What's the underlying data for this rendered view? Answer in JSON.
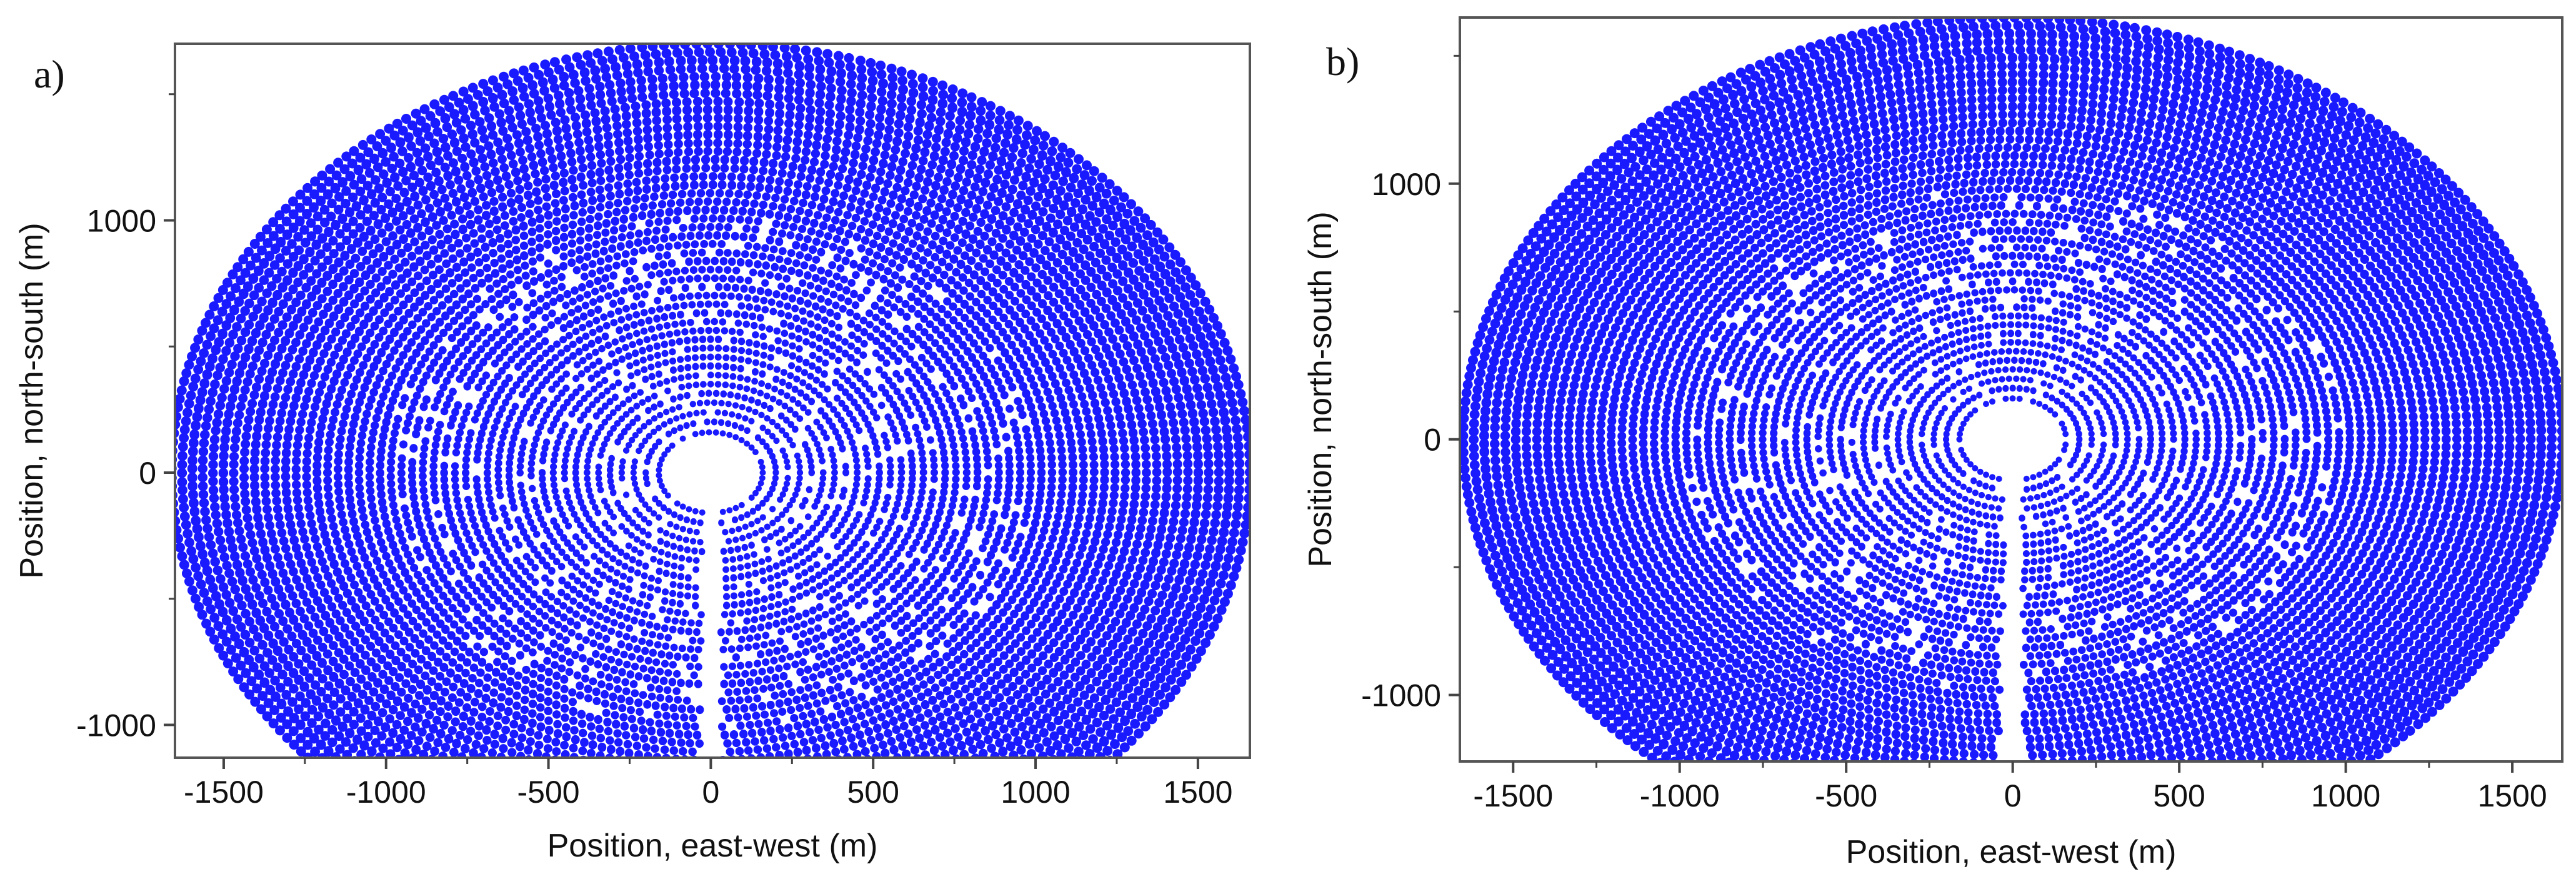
{
  "chart_data": [
    {
      "panel_label": "a)",
      "type": "scatter",
      "description_note": "heliostat field layout",
      "xlabel": "Position, east-west (m)",
      "ylabel": "Position, north-south (m)",
      "xlim": [
        -1650,
        1660
      ],
      "ylim": [
        -1130,
        1700
      ],
      "xticks": [
        -1500,
        -1000,
        -500,
        0,
        500,
        1000,
        1500
      ],
      "yticks": [
        -1000,
        0,
        1000
      ],
      "xtick_labels": [
        "-1500",
        "-1000",
        "-500",
        "0",
        "500",
        "1000",
        "1500"
      ],
      "ytick_labels": [
        "-1000",
        "0",
        "1000"
      ],
      "field": {
        "center_x": 0,
        "center_y": 0,
        "outer_radius_x": 1660,
        "outer_radius_y": 1700,
        "inner_hole_radius": 130,
        "ring_count": 46,
        "south_gap_x": 0,
        "color": "#1a1aff"
      }
    },
    {
      "panel_label": "b)",
      "type": "scatter",
      "description_note": "heliostat field layout",
      "xlabel": "Position, east-west (m)",
      "ylabel": "Position, north-south (m)",
      "xlim": [
        -1660,
        1650
      ],
      "ylim": [
        -1260,
        1650
      ],
      "xticks": [
        -1500,
        -1000,
        -500,
        0,
        500,
        1000,
        1500
      ],
      "yticks": [
        -1000,
        0,
        1000
      ],
      "xtick_labels": [
        "-1500",
        "-1000",
        "-500",
        "0",
        "500",
        "1000",
        "1500"
      ],
      "ytick_labels": [
        "-1000",
        "0",
        "1000"
      ],
      "field": {
        "center_x": 0,
        "center_y": 0,
        "outer_radius_x": 1650,
        "outer_radius_y": 1650,
        "inner_hole_radius": 130,
        "ring_count": 46,
        "south_gap_x": 0,
        "color": "#1a1aff"
      }
    }
  ]
}
